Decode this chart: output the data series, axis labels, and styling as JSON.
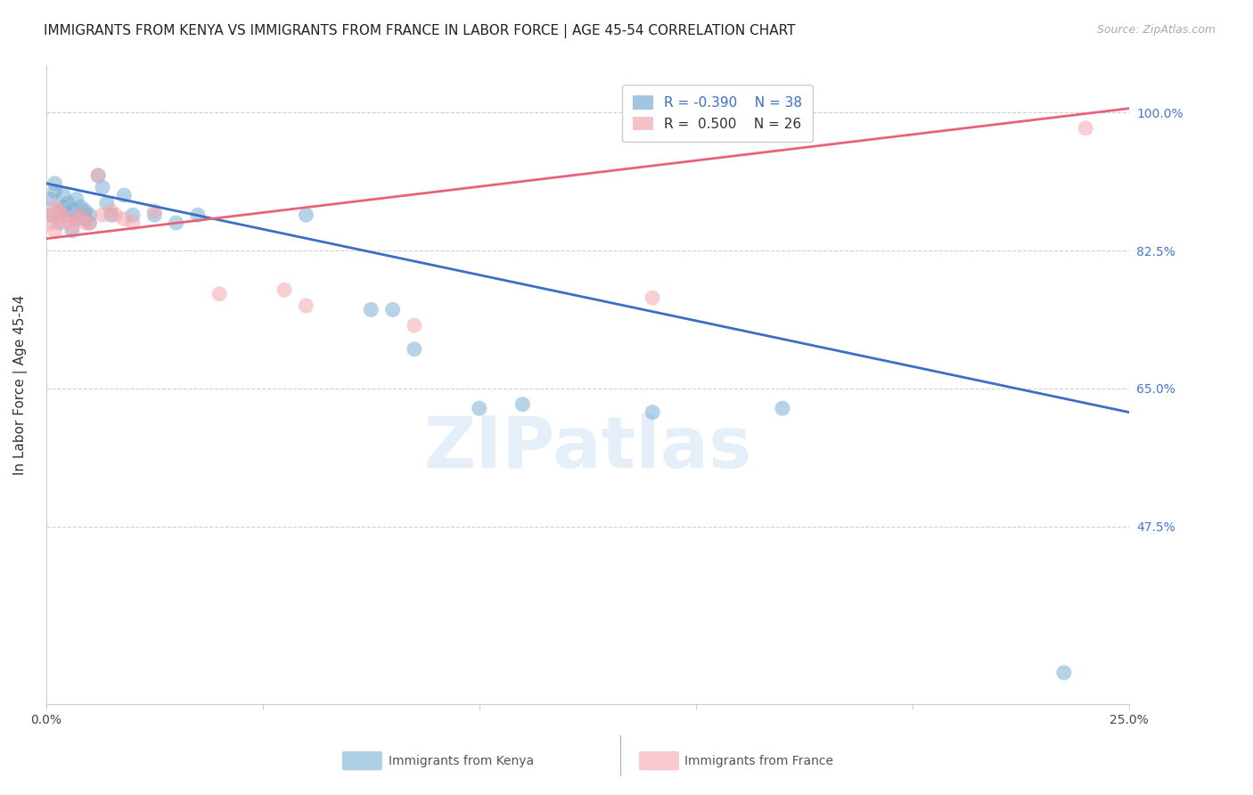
{
  "title": "IMMIGRANTS FROM KENYA VS IMMIGRANTS FROM FRANCE IN LABOR FORCE | AGE 45-54 CORRELATION CHART",
  "source": "Source: ZipAtlas.com",
  "ylabel": "In Labor Force | Age 45-54",
  "watermark": "ZIPatlas",
  "xlim": [
    0.0,
    0.25
  ],
  "ylim": [
    0.25,
    1.06
  ],
  "xticks": [
    0.0,
    0.05,
    0.1,
    0.15,
    0.2,
    0.25
  ],
  "xtick_labels": [
    "0.0%",
    "",
    "",
    "",
    "",
    "25.0%"
  ],
  "ytick_positions": [
    1.0,
    0.825,
    0.65,
    0.475
  ],
  "ytick_labels": [
    "100.0%",
    "82.5%",
    "65.0%",
    "47.5%"
  ],
  "kenya_color": "#7BAFD4",
  "france_color": "#F4A8B0",
  "kenya_line_color": "#3A6FC4",
  "france_line_color": "#E8637A",
  "kenya_R": -0.39,
  "kenya_N": 38,
  "france_R": 0.5,
  "france_N": 26,
  "kenya_scatter_x": [
    0.001,
    0.001,
    0.002,
    0.002,
    0.003,
    0.003,
    0.004,
    0.004,
    0.005,
    0.005,
    0.006,
    0.006,
    0.007,
    0.007,
    0.008,
    0.008,
    0.009,
    0.009,
    0.01,
    0.01,
    0.012,
    0.013,
    0.014,
    0.015,
    0.018,
    0.02,
    0.025,
    0.03,
    0.035,
    0.06,
    0.075,
    0.08,
    0.085,
    0.1,
    0.11,
    0.14,
    0.17,
    0.235
  ],
  "kenya_scatter_y": [
    0.89,
    0.87,
    0.9,
    0.91,
    0.875,
    0.86,
    0.88,
    0.895,
    0.87,
    0.885,
    0.875,
    0.85,
    0.89,
    0.865,
    0.88,
    0.87,
    0.865,
    0.875,
    0.86,
    0.87,
    0.92,
    0.905,
    0.885,
    0.87,
    0.895,
    0.87,
    0.87,
    0.86,
    0.87,
    0.87,
    0.75,
    0.75,
    0.7,
    0.625,
    0.63,
    0.62,
    0.625,
    0.29
  ],
  "france_scatter_x": [
    0.001,
    0.001,
    0.002,
    0.002,
    0.003,
    0.003,
    0.004,
    0.005,
    0.006,
    0.007,
    0.008,
    0.009,
    0.01,
    0.012,
    0.013,
    0.015,
    0.016,
    0.018,
    0.02,
    0.025,
    0.04,
    0.055,
    0.06,
    0.085,
    0.14,
    0.24
  ],
  "france_scatter_y": [
    0.87,
    0.86,
    0.88,
    0.85,
    0.865,
    0.875,
    0.87,
    0.86,
    0.855,
    0.865,
    0.87,
    0.86,
    0.86,
    0.92,
    0.87,
    0.875,
    0.87,
    0.865,
    0.86,
    0.875,
    0.77,
    0.775,
    0.755,
    0.73,
    0.765,
    0.98
  ],
  "kenya_trend_x": [
    0.0,
    0.25
  ],
  "kenya_trend_y": [
    0.91,
    0.62
  ],
  "france_trend_x": [
    0.0,
    0.25
  ],
  "france_trend_y": [
    0.84,
    1.005
  ],
  "grid_color": "#CCCCCC",
  "bg_color": "#FFFFFF",
  "title_fontsize": 11,
  "ylabel_fontsize": 11,
  "tick_fontsize": 10,
  "legend_fontsize": 11,
  "source_fontsize": 9
}
